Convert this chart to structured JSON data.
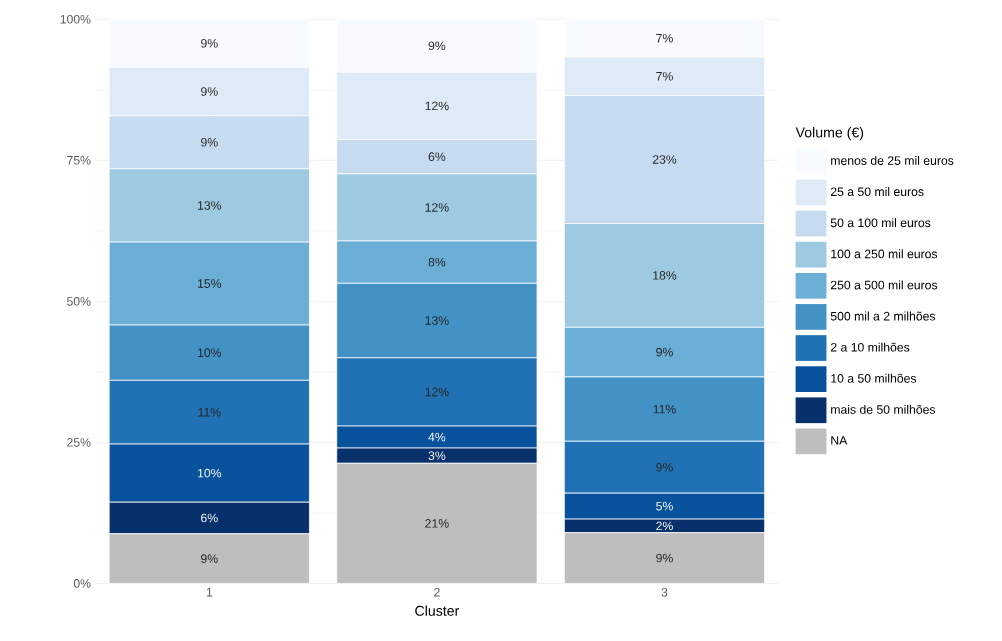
{
  "chart_data": {
    "type": "bar",
    "stacked": true,
    "xlabel": "Cluster",
    "legend_title": "Volume (€)",
    "categories": [
      "1",
      "2",
      "3"
    ],
    "ylim": [
      0,
      100
    ],
    "yticks": [
      {
        "value": 0,
        "label": "0%"
      },
      {
        "value": 25,
        "label": "25%"
      },
      {
        "value": 50,
        "label": "50%"
      },
      {
        "value": 75,
        "label": "75%"
      },
      {
        "value": 100,
        "label": "100%"
      }
    ],
    "grid": true,
    "legend": "right",
    "series": [
      {
        "name": "NA",
        "color": "#bebebe",
        "values": [
          8.8,
          21.3,
          9.0
        ],
        "value_labels": [
          "9%",
          "21%",
          "9%"
        ]
      },
      {
        "name": "mais de 50 milhões",
        "color": "#08306b",
        "values": [
          5.6,
          2.7,
          2.4
        ],
        "value_labels": [
          "6%",
          "3%",
          "2%"
        ]
      },
      {
        "name": "10 a 50 milhões",
        "color": "#08519c",
        "values": [
          10.3,
          3.9,
          4.6
        ],
        "value_labels": [
          "10%",
          "4%",
          "5%"
        ]
      },
      {
        "name": "2 a 10 milhões",
        "color": "#2171b5",
        "values": [
          11.3,
          12.1,
          9.2
        ],
        "value_labels": [
          "11%",
          "12%",
          "9%"
        ]
      },
      {
        "name": "500 mil a 2 milhões",
        "color": "#4292c6",
        "values": [
          9.8,
          13.2,
          11.4
        ],
        "value_labels": [
          "10%",
          "13%",
          "11%"
        ]
      },
      {
        "name": "250 a 500 mil euros",
        "color": "#6baed6",
        "values": [
          14.7,
          7.5,
          8.8
        ],
        "value_labels": [
          "15%",
          "8%",
          "9%"
        ]
      },
      {
        "name": "100 a 250 mil euros",
        "color": "#9ecae1",
        "values": [
          13.0,
          11.9,
          18.4
        ],
        "value_labels": [
          "13%",
          "12%",
          "18%"
        ]
      },
      {
        "name": "50 a 100 mil euros",
        "color": "#c6dbef",
        "values": [
          9.4,
          6.1,
          22.7
        ],
        "value_labels": [
          "9%",
          "6%",
          "23%"
        ]
      },
      {
        "name": "25 a 50 mil euros",
        "color": "#deebf7",
        "values": [
          8.6,
          11.9,
          6.8
        ],
        "value_labels": [
          "9%",
          "12%",
          "7%"
        ]
      },
      {
        "name": "menos de 25 mil euros",
        "color": "#f7fbff",
        "values": [
          8.5,
          9.4,
          6.7
        ],
        "value_labels": [
          "9%",
          "9%",
          "7%"
        ]
      }
    ]
  }
}
